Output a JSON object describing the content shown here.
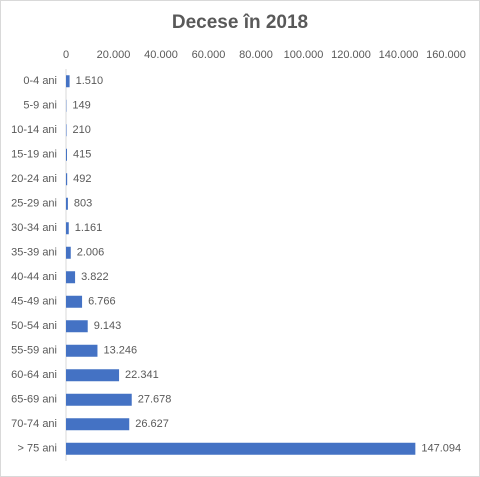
{
  "chart_data": {
    "type": "bar",
    "orientation": "horizontal",
    "title": "Decese în 2018",
    "categories": [
      "0-4 ani",
      "5-9 ani",
      "10-14 ani",
      "15-19 ani",
      "20-24 ani",
      "25-29 ani",
      "30-34 ani",
      "35-39 ani",
      "40-44 ani",
      "45-49 ani",
      "50-54 ani",
      "55-59 ani",
      "60-64 ani",
      "65-69 ani",
      "70-74 ani",
      "> 75 ani"
    ],
    "values": [
      1510,
      149,
      210,
      415,
      492,
      803,
      1161,
      2006,
      3822,
      6766,
      9143,
      13246,
      22341,
      27678,
      26627,
      147094
    ],
    "value_labels": [
      "1.510",
      "149",
      "210",
      "415",
      "492",
      "803",
      "1.161",
      "2.006",
      "3.822",
      "6.766",
      "9.143",
      "13.246",
      "22.341",
      "27.678",
      "26.627",
      "147.094"
    ],
    "color": "#4472c4",
    "xlim": [
      0,
      160000
    ],
    "xticks": [
      0,
      {
        "value": 20000,
        "label": "20.000"
      },
      {
        "value": 40000,
        "label": "40.000"
      },
      {
        "value": 60000,
        "label": "60.000"
      },
      {
        "value": 80000,
        "label": "80.000"
      },
      {
        "value": 100000,
        "label": "100.000"
      },
      {
        "value": 120000,
        "label": "120.000"
      },
      {
        "value": 140000,
        "label": "140.000"
      },
      {
        "value": 160000,
        "label": "160.000"
      }
    ],
    "grid": false
  }
}
